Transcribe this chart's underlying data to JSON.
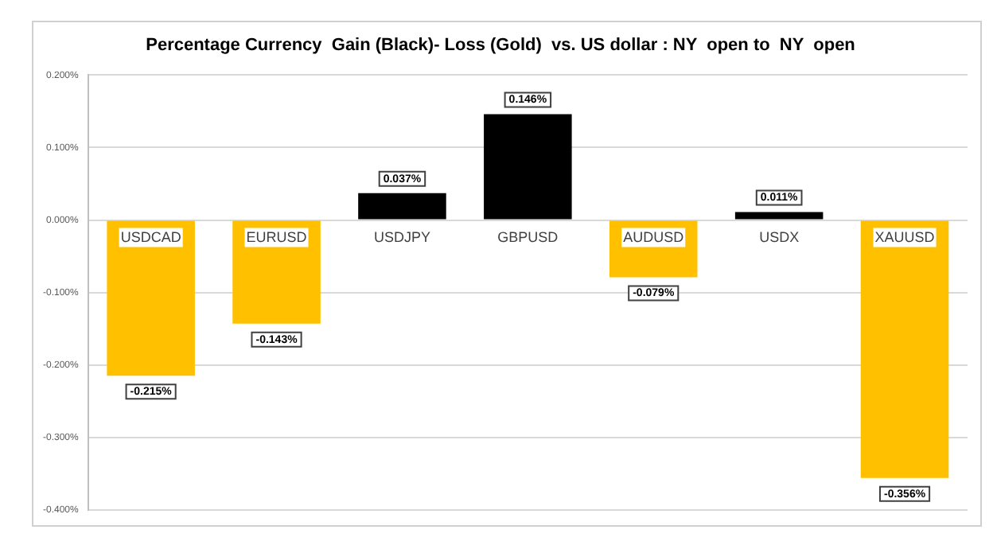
{
  "chart_data": {
    "type": "bar",
    "title": "Percentage Currency  Gain (Black)- Loss (Gold)  vs. US dollar : NY  open to  NY  open",
    "categories": [
      "USDCAD",
      "EURUSD",
      "USDJPY",
      "GBPUSD",
      "AUDUSD",
      "USDX",
      "XAUUSD"
    ],
    "values": [
      -0.215,
      -0.143,
      0.037,
      0.146,
      -0.079,
      0.011,
      -0.356
    ],
    "colors": [
      "#ffc000",
      "#ffc000",
      "#000000",
      "#000000",
      "#ffc000",
      "#000000",
      "#ffc000"
    ],
    "value_labels": [
      "-0.215%",
      "-0.143%",
      "0.037%",
      "0.146%",
      "-0.079%",
      "0.011%",
      "-0.356%"
    ],
    "ylim": [
      -0.4,
      0.2
    ],
    "yticks": [
      {
        "value": -0.4,
        "label": "-0.400%"
      },
      {
        "value": -0.3,
        "label": "-0.300%"
      },
      {
        "value": -0.2,
        "label": "-0.200%"
      },
      {
        "value": -0.1,
        "label": "-0.100%"
      },
      {
        "value": 0,
        "label": "0.000%"
      },
      {
        "value": 0.1,
        "label": "0.100%"
      },
      {
        "value": 0.2,
        "label": "0.200%"
      }
    ],
    "grid": "y",
    "legend": false
  }
}
